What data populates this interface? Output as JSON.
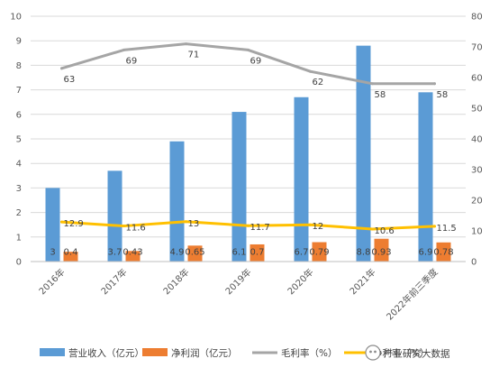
{
  "chart_data": {
    "type": "bar",
    "categories": [
      "2016年",
      "2017年",
      "2018年",
      "2019年",
      "2020年",
      "2021年",
      "2022年前三季度"
    ],
    "series": [
      {
        "name": "营业收入（亿元）",
        "type": "bar",
        "axis": "left",
        "color": "#5B9BD5",
        "values": [
          3,
          3.7,
          4.9,
          6.1,
          6.7,
          8.8,
          6.9
        ],
        "labels": [
          "3",
          "3.7",
          "4.9",
          "6.1",
          "6.7",
          "8.8",
          "6.9"
        ]
      },
      {
        "name": "净利润（亿元）",
        "type": "bar",
        "axis": "left",
        "color": "#ED7D31",
        "values": [
          0.4,
          0.43,
          0.65,
          0.7,
          0.79,
          0.93,
          0.78
        ],
        "labels": [
          "0.4",
          "0.43",
          "0.65",
          "0.7",
          "0.79",
          "0.93",
          "0.78"
        ]
      },
      {
        "name": "毛利率（%）",
        "type": "line",
        "axis": "right",
        "color": "#A5A5A5",
        "values": [
          63,
          69,
          71,
          69,
          62,
          58,
          58
        ],
        "labels": [
          "63",
          "69",
          "71",
          "69",
          "62",
          "58",
          "58"
        ]
      },
      {
        "name": "净利率（%）",
        "type": "line",
        "axis": "right",
        "color": "#FFC000",
        "values": [
          12.9,
          11.6,
          13,
          11.7,
          12,
          10.6,
          11.5
        ],
        "labels": [
          "12.9",
          "11.6",
          "13",
          "11.7",
          "12",
          "10.6",
          "11.5"
        ]
      }
    ],
    "yleft": {
      "min": 0,
      "max": 10,
      "step": 1
    },
    "yright": {
      "min": 0,
      "max": 80,
      "step": 10
    },
    "grid": true,
    "legend_position": "bottom",
    "watermark": "产业研究大数据"
  }
}
